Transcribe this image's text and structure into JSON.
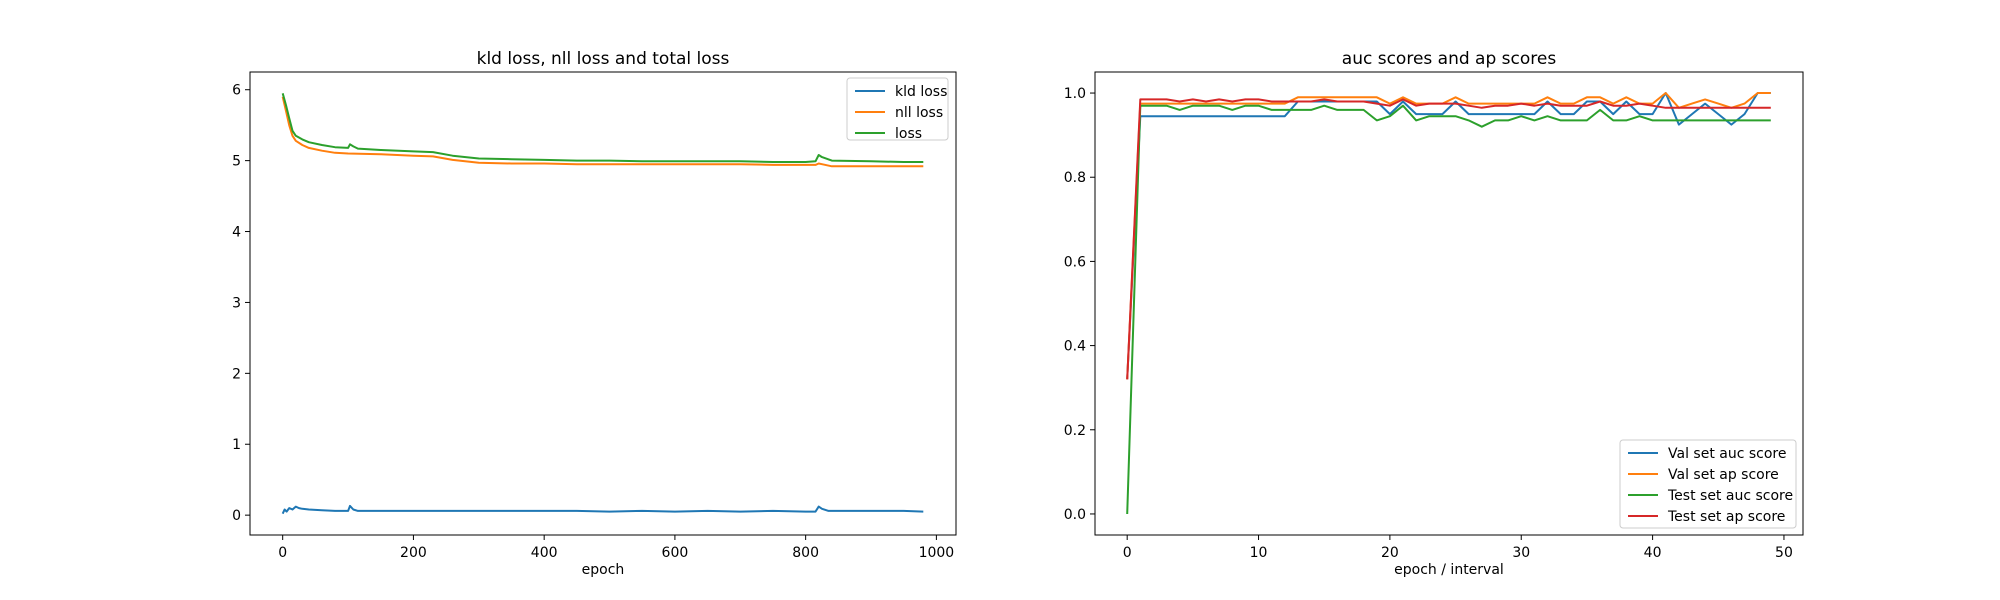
{
  "chart_data": [
    {
      "type": "line",
      "title": "kld loss, nll loss and total loss",
      "xlabel": "epoch",
      "ylabel": "",
      "xlim": [
        -50,
        1030
      ],
      "ylim": [
        -0.28,
        6.25
      ],
      "xticks": [
        0,
        200,
        400,
        600,
        800,
        1000
      ],
      "yticks": [
        0,
        1,
        2,
        3,
        4,
        5,
        6
      ],
      "legend": "top-right",
      "series": [
        {
          "name": "kld loss",
          "color": "#1f77b4",
          "x": [
            0,
            3,
            6,
            10,
            15,
            20,
            25,
            30,
            40,
            60,
            80,
            100,
            103,
            108,
            115,
            150,
            200,
            250,
            300,
            350,
            400,
            450,
            500,
            550,
            600,
            650,
            700,
            750,
            800,
            815,
            820,
            825,
            835,
            850,
            900,
            950,
            980
          ],
          "y": [
            0.02,
            0.08,
            0.05,
            0.1,
            0.08,
            0.12,
            0.1,
            0.09,
            0.08,
            0.07,
            0.06,
            0.06,
            0.13,
            0.08,
            0.06,
            0.06,
            0.06,
            0.06,
            0.06,
            0.06,
            0.06,
            0.06,
            0.05,
            0.06,
            0.05,
            0.06,
            0.05,
            0.06,
            0.05,
            0.05,
            0.12,
            0.09,
            0.06,
            0.06,
            0.06,
            0.06,
            0.05
          ]
        },
        {
          "name": "nll loss",
          "color": "#ff7f0e",
          "x": [
            0,
            5,
            10,
            15,
            20,
            30,
            40,
            60,
            80,
            100,
            150,
            200,
            230,
            260,
            300,
            350,
            400,
            450,
            500,
            550,
            600,
            650,
            700,
            750,
            800,
            815,
            820,
            825,
            840,
            900,
            950,
            980
          ],
          "y": [
            5.9,
            5.7,
            5.5,
            5.35,
            5.28,
            5.22,
            5.18,
            5.14,
            5.11,
            5.1,
            5.09,
            5.07,
            5.06,
            5.01,
            4.97,
            4.96,
            4.96,
            4.95,
            4.95,
            4.95,
            4.95,
            4.95,
            4.95,
            4.94,
            4.94,
            4.94,
            4.96,
            4.95,
            4.92,
            4.92,
            4.92,
            4.92
          ]
        },
        {
          "name": "loss",
          "color": "#2ca02c",
          "x": [
            0,
            5,
            10,
            15,
            20,
            30,
            40,
            60,
            80,
            100,
            103,
            108,
            115,
            150,
            200,
            230,
            260,
            300,
            350,
            400,
            450,
            500,
            550,
            600,
            650,
            700,
            750,
            800,
            815,
            820,
            825,
            840,
            900,
            950,
            980
          ],
          "y": [
            5.95,
            5.78,
            5.6,
            5.42,
            5.35,
            5.3,
            5.26,
            5.22,
            5.19,
            5.18,
            5.23,
            5.2,
            5.17,
            5.15,
            5.13,
            5.12,
            5.07,
            5.03,
            5.02,
            5.01,
            5.0,
            5.0,
            4.99,
            4.99,
            4.99,
            4.99,
            4.98,
            4.98,
            4.99,
            5.08,
            5.05,
            5.0,
            4.99,
            4.98,
            4.98
          ]
        }
      ]
    },
    {
      "type": "line",
      "title": "auc scores and ap scores",
      "xlabel": "epoch / interval",
      "ylabel": "",
      "xlim": [
        -2.45,
        51.45
      ],
      "ylim": [
        -0.05,
        1.05
      ],
      "xticks": [
        0,
        10,
        20,
        30,
        40,
        50
      ],
      "yticks": [
        0.0,
        0.2,
        0.4,
        0.6,
        0.8,
        1.0
      ],
      "ytick_labels": [
        "0.0",
        "0.2",
        "0.4",
        "0.6",
        "0.8",
        "1.0"
      ],
      "legend": "lower-right",
      "x": [
        0,
        1,
        2,
        3,
        4,
        5,
        6,
        7,
        8,
        9,
        10,
        11,
        12,
        13,
        14,
        15,
        16,
        17,
        18,
        19,
        20,
        21,
        22,
        23,
        24,
        25,
        26,
        27,
        28,
        29,
        30,
        31,
        32,
        33,
        34,
        35,
        36,
        37,
        38,
        39,
        40,
        41,
        42,
        43,
        44,
        45,
        46,
        47,
        48,
        49
      ],
      "series": [
        {
          "name": "Val set auc score",
          "color": "#1f77b4",
          "values": [
            0.32,
            0.945,
            0.945,
            0.945,
            0.945,
            0.945,
            0.945,
            0.945,
            0.945,
            0.945,
            0.945,
            0.945,
            0.945,
            0.98,
            0.98,
            0.98,
            0.98,
            0.98,
            0.98,
            0.98,
            0.95,
            0.98,
            0.95,
            0.95,
            0.95,
            0.98,
            0.95,
            0.95,
            0.95,
            0.95,
            0.95,
            0.95,
            0.98,
            0.95,
            0.95,
            0.98,
            0.98,
            0.95,
            0.98,
            0.95,
            0.95,
            1.0,
            0.925,
            0.95,
            0.975,
            0.95,
            0.925,
            0.95,
            1.0,
            1.0
          ]
        },
        {
          "name": "Val set ap score",
          "color": "#ff7f0e",
          "values": [
            0.32,
            0.975,
            0.975,
            0.975,
            0.975,
            0.975,
            0.975,
            0.975,
            0.975,
            0.975,
            0.975,
            0.975,
            0.975,
            0.99,
            0.99,
            0.99,
            0.99,
            0.99,
            0.99,
            0.99,
            0.975,
            0.99,
            0.975,
            0.975,
            0.975,
            0.99,
            0.975,
            0.975,
            0.975,
            0.975,
            0.975,
            0.975,
            0.99,
            0.975,
            0.975,
            0.99,
            0.99,
            0.975,
            0.99,
            0.975,
            0.975,
            1.0,
            0.965,
            0.975,
            0.985,
            0.975,
            0.965,
            0.975,
            1.0,
            1.0
          ]
        },
        {
          "name": "Test set auc score",
          "color": "#2ca02c",
          "values": [
            0.0,
            0.97,
            0.97,
            0.97,
            0.96,
            0.97,
            0.97,
            0.97,
            0.96,
            0.97,
            0.97,
            0.96,
            0.96,
            0.96,
            0.96,
            0.97,
            0.96,
            0.96,
            0.96,
            0.935,
            0.945,
            0.97,
            0.935,
            0.945,
            0.945,
            0.945,
            0.935,
            0.92,
            0.935,
            0.935,
            0.945,
            0.935,
            0.945,
            0.935,
            0.935,
            0.935,
            0.96,
            0.935,
            0.935,
            0.945,
            0.935,
            0.935,
            0.935,
            0.935,
            0.935,
            0.935,
            0.935,
            0.935,
            0.935,
            0.935
          ]
        },
        {
          "name": "Test set ap score",
          "color": "#d62728",
          "values": [
            0.32,
            0.985,
            0.985,
            0.985,
            0.98,
            0.985,
            0.98,
            0.985,
            0.98,
            0.985,
            0.985,
            0.98,
            0.98,
            0.98,
            0.98,
            0.985,
            0.98,
            0.98,
            0.98,
            0.975,
            0.97,
            0.985,
            0.97,
            0.975,
            0.975,
            0.975,
            0.97,
            0.965,
            0.97,
            0.97,
            0.975,
            0.97,
            0.975,
            0.97,
            0.97,
            0.97,
            0.98,
            0.97,
            0.97,
            0.975,
            0.97,
            0.965,
            0.965,
            0.965,
            0.965,
            0.965,
            0.965,
            0.965,
            0.965,
            0.965
          ]
        }
      ]
    }
  ]
}
